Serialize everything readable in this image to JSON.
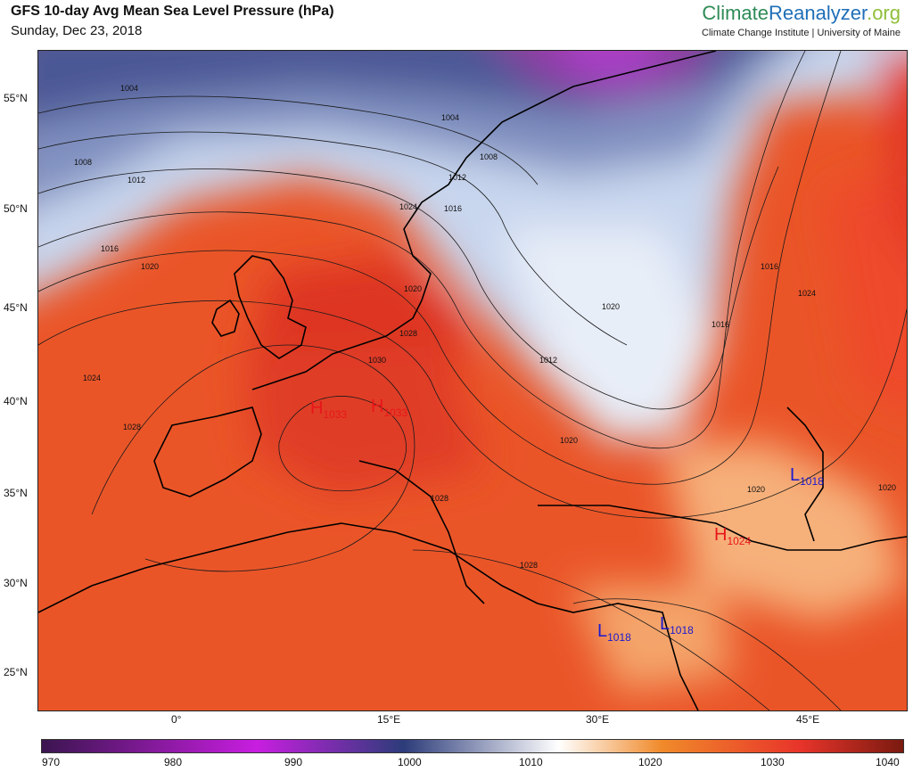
{
  "header": {
    "title": "GFS 10-day Avg Mean Sea Level Pressure (hPa)",
    "date": "Sunday, Dec 23, 2018",
    "brand_a": "Climate",
    "brand_b": "Reanalyzer",
    "brand_c": ".org",
    "brand_sub": "Climate Change Institute | University of Maine"
  },
  "axes": {
    "lat_labels": [
      "55°N",
      "50°N",
      "45°N",
      "40°N",
      "35°N",
      "30°N",
      "25°N"
    ],
    "lon_labels": [
      "0°",
      "15°E",
      "30°E",
      "45°E"
    ]
  },
  "centers": [
    {
      "type": "H",
      "value": "1033"
    },
    {
      "type": "H",
      "value": "1033"
    },
    {
      "type": "L",
      "value": "1018"
    },
    {
      "type": "H",
      "value": "1024"
    },
    {
      "type": "L",
      "value": "1018"
    },
    {
      "type": "L",
      "value": "1018"
    }
  ],
  "isobar_labels": [
    "1004",
    "1008",
    "1012",
    "1016",
    "1020",
    "1024",
    "1028",
    "1004",
    "1008",
    "1012",
    "1016",
    "1020",
    "1024",
    "1020",
    "1012",
    "1016",
    "1016",
    "1020",
    "1020",
    "1020",
    "1024",
    "1028",
    "1030",
    "1028",
    "1028"
  ],
  "colorbar": {
    "ticks": [
      "970",
      "980",
      "990",
      "1000",
      "1010",
      "1020",
      "1030",
      "1040"
    ],
    "colors": {
      "low": "#3b1550",
      "mid_low": "#c81ee0",
      "navy": "#2c3c7a",
      "white": "#ffffff",
      "orange": "#f08a2a",
      "red": "#e8342a",
      "deep": "#7a1a10"
    }
  }
}
